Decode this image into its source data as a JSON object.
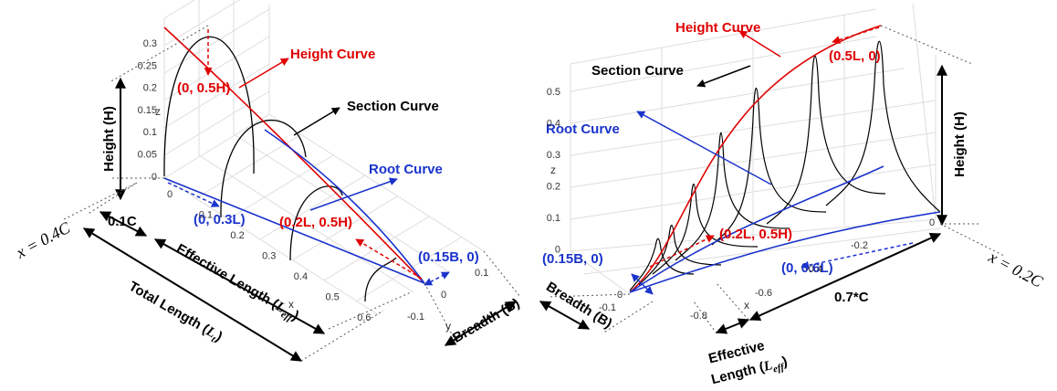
{
  "left": {
    "z_ticks": [
      "0.3",
      "0.25",
      "0.2",
      "0.15",
      "0.1",
      "0.05",
      "0"
    ],
    "x_ticks": [
      "0",
      "0.1",
      "0.2",
      "0.3",
      "0.4",
      "0.5",
      "0.6"
    ],
    "y_ticks": [
      "0.1",
      "0",
      "-0.1"
    ],
    "axis_labels": {
      "x": "x",
      "y": "y",
      "z": "z"
    },
    "labels": {
      "height_curve": "Height Curve",
      "section_curve": "Section Curve",
      "root_curve": "Root Curve",
      "p_top": "(0, 0.5H)",
      "p_root": "(0, 0.3L)",
      "p_mid": "(0.2L, 0.5H)",
      "p_tip": "(0.15B, 0)",
      "height": "Height (H)",
      "chord_gap": "0.1C",
      "position": "x = 0.4C",
      "breadth": "Breadth (B)",
      "effective_length": {
        "text": "Effective Length (",
        "var": "L",
        "sub": "eff",
        "close": ")"
      },
      "total_length": {
        "text": "Total Length (",
        "var": "L",
        "sub": "t",
        "close": ")"
      }
    }
  },
  "right": {
    "z_ticks": [
      "0.5",
      "0.4",
      "0.3",
      "0.2",
      "0.1",
      "0"
    ],
    "x_ticks": [
      "-0.8",
      "-0.6",
      "-0.4",
      "-0.2",
      "0"
    ],
    "y_ticks": [
      "0",
      "-0.1"
    ],
    "axis_labels": {
      "x": "x",
      "z": "z"
    },
    "labels": {
      "height_curve": "Height Curve",
      "section_curve": "Section Curve",
      "root_curve": "Root Curve",
      "p_top": "(0.5L, 0)",
      "p_mid": "(0.2L, 0.5H)",
      "p_tip": "(0.15B, 0)",
      "p_root": "(0, 0.6L)",
      "height": "Height (H)",
      "chord": "0.7*C",
      "position": "x = 0.2C",
      "breadth": "Breadth (B)",
      "effective_1": "Effective",
      "effective_2": {
        "text": "Length (",
        "var": "L",
        "sub": "eff",
        "close": ")"
      }
    }
  }
}
